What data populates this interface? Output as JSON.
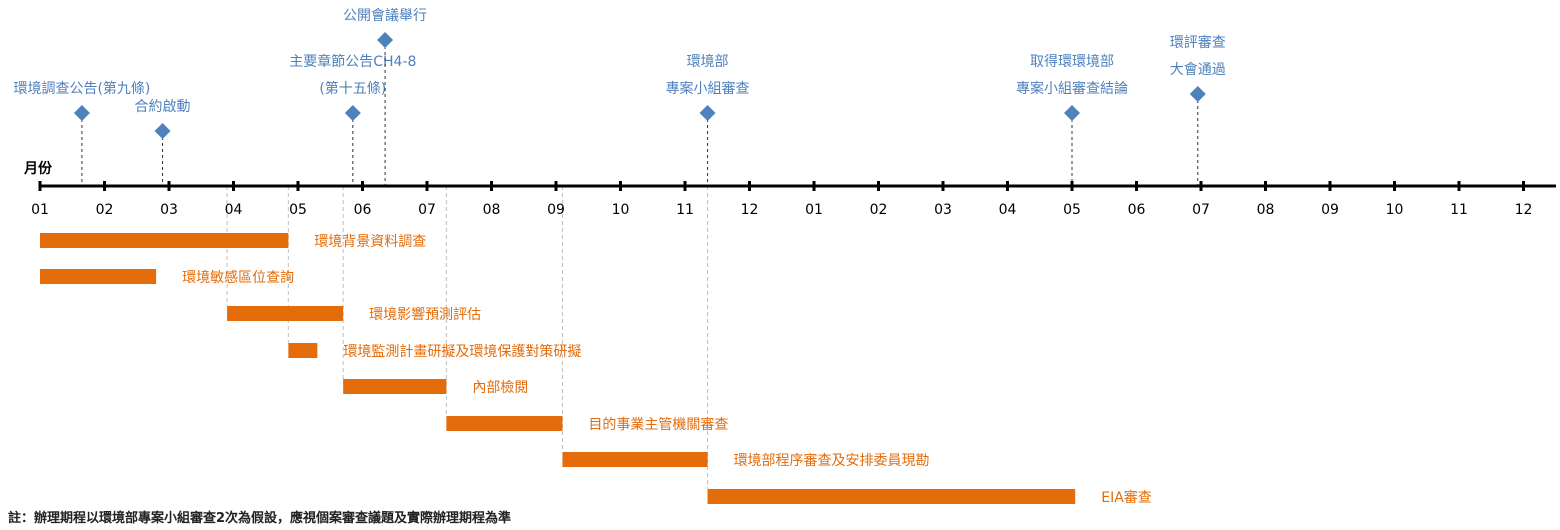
{
  "chart_data": {
    "type": "gantt-timeline",
    "axis_label": "月份",
    "ticks": [
      "01",
      "02",
      "03",
      "04",
      "05",
      "06",
      "07",
      "08",
      "09",
      "10",
      "11",
      "12",
      "01",
      "02",
      "03",
      "04",
      "05",
      "06",
      "07",
      "08",
      "09",
      "10",
      "11",
      "12"
    ],
    "milestones": [
      {
        "label": [
          "環境調查公告(第九條)"
        ],
        "month": 1.65
      },
      {
        "label": [
          "合約啟動"
        ],
        "month": 2.9
      },
      {
        "label": [
          "主要章節公告CH4-8",
          "(第十五條)"
        ],
        "month": 5.85
      },
      {
        "label": [
          "公開會議舉行"
        ],
        "month": 6.35
      },
      {
        "label": [
          "環境部",
          "專案小組審查"
        ],
        "month": 11.35
      },
      {
        "label": [
          "取得環環境部",
          "專案小組審查結論"
        ],
        "month": 17.0
      },
      {
        "label": [
          "環評審查",
          "大會通過"
        ],
        "month": 18.95
      }
    ],
    "tasks": [
      {
        "name": "環境背景資料調查",
        "start": 1.0,
        "end": 4.85
      },
      {
        "name": "環境敏感區位查詢",
        "start": 1.0,
        "end": 2.8
      },
      {
        "name": "環境影響預測評估",
        "start": 3.9,
        "end": 5.7
      },
      {
        "name": "環境監測計畫研擬及環境保護對策研擬",
        "start": 4.85,
        "end": 5.3
      },
      {
        "name": "內部檢閱",
        "start": 5.7,
        "end": 7.3
      },
      {
        "name": "目的事業主管機關審查",
        "start": 7.3,
        "end": 9.1
      },
      {
        "name": "環境部程序審查及安排委員現勘",
        "start": 9.1,
        "end": 11.35
      },
      {
        "name": "EIA審查",
        "start": 11.35,
        "end": 17.05
      }
    ],
    "colors": {
      "milestone": "#4f81bd",
      "task": "#e46c0a",
      "axis": "#000000",
      "guide": "#bfbfbf"
    }
  },
  "footnote": "註：辦理期程以環境部專案小組審查2次為假設，應視個案審查議題及實際辦理期程為準"
}
